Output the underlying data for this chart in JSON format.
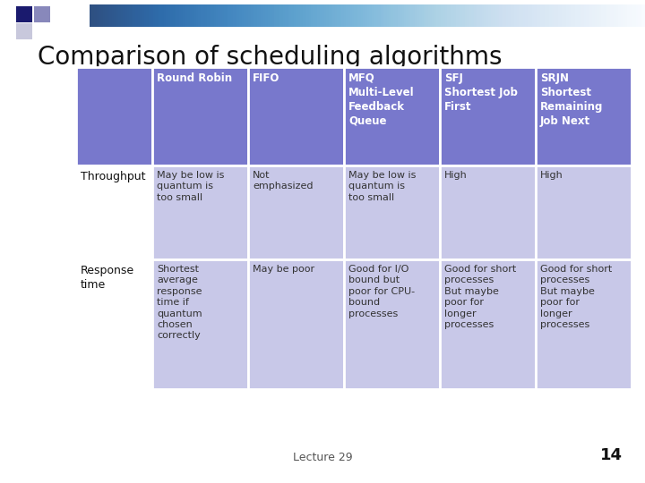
{
  "title": "Comparison of scheduling algorithms",
  "title_fontsize": 20,
  "background_color": "#ffffff",
  "header_bg": "#7878cc",
  "row_bg": "#c8c8e8",
  "header_text_color": "#ffffff",
  "row_text_color": "#333333",
  "row_label_color": "#111111",
  "columns": [
    "Round Robin",
    "FIFO",
    "MFQ\nMulti-Level\nFeedback\nQueue",
    "SFJ\nShortest Job\nFirst",
    "SRJN\nShortest\nRemaining\nJob Next"
  ],
  "row_labels": [
    "Throughput",
    "Response\ntime"
  ],
  "cells": [
    [
      "May be low is\nquantum is\ntoo small",
      "Not\nemphasized",
      "May be low is\nquantum is\ntoo small",
      "High",
      "High"
    ],
    [
      "Shortest\naverage\nresponse\ntime if\nquantum\nchosen\ncorrectly",
      "May be poor",
      "Good for I/O\nbound but\npoor for CPU-\nbound\nprocesses",
      "Good for short\nprocesses\nBut maybe\npoor for\nlonger\nprocesses",
      "Good for short\nprocesses\nBut maybe\npoor for\nlonger\nprocesses"
    ]
  ],
  "footer_label": "Lecture 29",
  "footer_page": "14",
  "font_family": "DejaVu Sans",
  "cell_font_size": 8.0,
  "header_font_size": 8.5,
  "row_label_font_size": 9.0,
  "deco_dark": "#1a1a6e",
  "deco_mid": "#8888bb",
  "deco_light": "#c8c8dc"
}
